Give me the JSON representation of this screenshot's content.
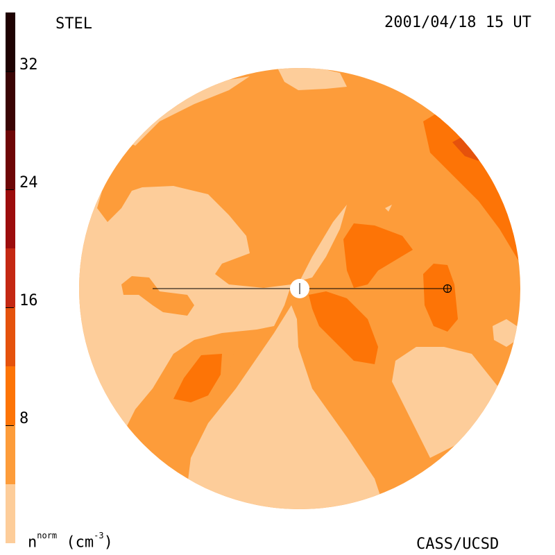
{
  "header": {
    "source_label": "STEL",
    "timestamp": "2001/04/18 15 UT"
  },
  "footer": {
    "units_label_base": "n",
    "units_label_super": "norm",
    "units_label_unit": "(cm",
    "units_label_exp": "-3",
    "units_label_close": ")",
    "credit": "CASS/UCSD"
  },
  "colorbar": {
    "min": 0,
    "max": 36,
    "tick_labels": [
      "32",
      "24",
      "16",
      "8"
    ],
    "tick_values": [
      32,
      24,
      16,
      8
    ],
    "bands": [
      {
        "from": 0,
        "to": 4,
        "color": "#fdcd9a"
      },
      {
        "from": 4,
        "to": 8,
        "color": "#fd9c3a"
      },
      {
        "from": 8,
        "to": 12,
        "color": "#fd7406"
      },
      {
        "from": 12,
        "to": 16,
        "color": "#e5520c"
      },
      {
        "from": 16,
        "to": 20,
        "color": "#c42812"
      },
      {
        "from": 20,
        "to": 24,
        "color": "#9c0c0c"
      },
      {
        "from": 24,
        "to": 28,
        "color": "#6e0606"
      },
      {
        "from": 28,
        "to": 32,
        "color": "#3a0404"
      },
      {
        "from": 32,
        "to": 36,
        "color": "#1e0202"
      }
    ]
  },
  "colors": {
    "level_low": "#fdcd9a",
    "level_mid": "#fd9c3a",
    "level_high": "#fd7406",
    "level_higher": "#e5520c"
  }
}
